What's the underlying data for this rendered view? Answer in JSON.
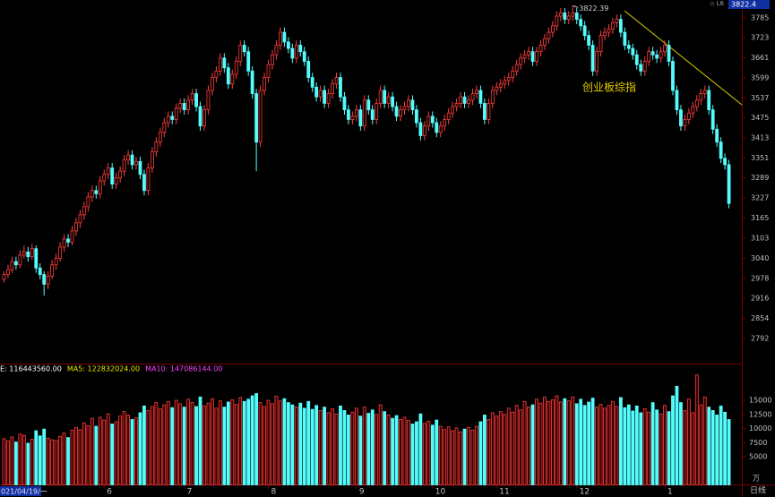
{
  "chart_data": {
    "type": "candlestick",
    "title": "创业板综指",
    "up_color": "#ff3c3c",
    "down_color": "#54fcfc",
    "ylim": [
      2717,
      3840
    ],
    "yticks": [
      3785,
      3723,
      3661,
      3599,
      3537,
      3475,
      3413,
      3351,
      3289,
      3227,
      3165,
      3103,
      3040,
      2978,
      2916,
      2854,
      2792
    ],
    "xticks": [
      {
        "value": 25,
        "label": "6"
      },
      {
        "value": 45,
        "label": "7"
      },
      {
        "value": 66,
        "label": "8"
      },
      {
        "value": 88,
        "label": "9"
      },
      {
        "value": 107,
        "label": "10"
      },
      {
        "value": 123,
        "label": "11"
      },
      {
        "value": 143,
        "label": "12"
      },
      {
        "value": 165,
        "label": "1"
      }
    ],
    "start_label": "021/04/19/一",
    "cursor_value": "3822.4",
    "top_icons": "◇ L6",
    "period": "日线",
    "candles": [
      [
        2975,
        3000,
        2965,
        2990
      ],
      [
        2990,
        3020,
        2980,
        3005
      ],
      [
        3005,
        3045,
        2995,
        3030
      ],
      [
        3030,
        3045,
        3005,
        3020
      ],
      [
        3020,
        3065,
        3010,
        3050
      ],
      [
        3050,
        3080,
        3040,
        3060
      ],
      [
        3060,
        3075,
        3030,
        3045
      ],
      [
        3045,
        3085,
        3035,
        3070
      ],
      [
        3070,
        3080,
        2995,
        3010
      ],
      [
        3010,
        3025,
        2975,
        2990
      ],
      [
        2990,
        3000,
        2925,
        2960
      ],
      [
        2960,
        3000,
        2945,
        2985
      ],
      [
        2985,
        3035,
        2975,
        3020
      ],
      [
        3020,
        3055,
        3005,
        3040
      ],
      [
        3040,
        3090,
        3030,
        3075
      ],
      [
        3075,
        3115,
        3060,
        3100
      ],
      [
        3100,
        3115,
        3075,
        3090
      ],
      [
        3090,
        3140,
        3080,
        3125
      ],
      [
        3125,
        3165,
        3110,
        3150
      ],
      [
        3150,
        3190,
        3135,
        3175
      ],
      [
        3175,
        3215,
        3160,
        3200
      ],
      [
        3200,
        3245,
        3185,
        3230
      ],
      [
        3230,
        3265,
        3215,
        3250
      ],
      [
        3250,
        3265,
        3225,
        3240
      ],
      [
        3240,
        3295,
        3225,
        3280
      ],
      [
        3280,
        3315,
        3265,
        3300
      ],
      [
        3300,
        3335,
        3285,
        3320
      ],
      [
        3320,
        3335,
        3255,
        3270
      ],
      [
        3270,
        3305,
        3255,
        3290
      ],
      [
        3290,
        3325,
        3275,
        3310
      ],
      [
        3310,
        3360,
        3295,
        3345
      ],
      [
        3345,
        3375,
        3330,
        3360
      ],
      [
        3360,
        3375,
        3315,
        3330
      ],
      [
        3330,
        3355,
        3315,
        3340
      ],
      [
        3340,
        3355,
        3285,
        3300
      ],
      [
        3300,
        3315,
        3235,
        3250
      ],
      [
        3250,
        3335,
        3235,
        3320
      ],
      [
        3320,
        3385,
        3305,
        3370
      ],
      [
        3370,
        3415,
        3355,
        3400
      ],
      [
        3400,
        3445,
        3385,
        3430
      ],
      [
        3430,
        3475,
        3415,
        3460
      ],
      [
        3460,
        3495,
        3445,
        3480
      ],
      [
        3480,
        3495,
        3455,
        3470
      ],
      [
        3470,
        3520,
        3455,
        3505
      ],
      [
        3505,
        3535,
        3490,
        3520
      ],
      [
        3520,
        3535,
        3485,
        3500
      ],
      [
        3500,
        3545,
        3485,
        3530
      ],
      [
        3530,
        3565,
        3515,
        3550
      ],
      [
        3550,
        3565,
        3495,
        3510
      ],
      [
        3510,
        3525,
        3435,
        3450
      ],
      [
        3450,
        3515,
        3435,
        3500
      ],
      [
        3500,
        3575,
        3485,
        3560
      ],
      [
        3560,
        3615,
        3545,
        3600
      ],
      [
        3600,
        3635,
        3585,
        3620
      ],
      [
        3620,
        3675,
        3605,
        3660
      ],
      [
        3660,
        3675,
        3615,
        3630
      ],
      [
        3630,
        3645,
        3565,
        3580
      ],
      [
        3580,
        3625,
        3565,
        3610
      ],
      [
        3610,
        3665,
        3595,
        3650
      ],
      [
        3650,
        3715,
        3635,
        3700
      ],
      [
        3700,
        3715,
        3665,
        3680
      ],
      [
        3680,
        3695,
        3605,
        3620
      ],
      [
        3620,
        3635,
        3535,
        3550
      ],
      [
        3550,
        3565,
        3310,
        3400
      ],
      [
        3400,
        3575,
        3385,
        3560
      ],
      [
        3560,
        3615,
        3545,
        3600
      ],
      [
        3600,
        3655,
        3585,
        3640
      ],
      [
        3640,
        3685,
        3625,
        3670
      ],
      [
        3670,
        3715,
        3655,
        3700
      ],
      [
        3700,
        3755,
        3685,
        3740
      ],
      [
        3740,
        3755,
        3695,
        3710
      ],
      [
        3710,
        3725,
        3675,
        3690
      ],
      [
        3690,
        3705,
        3645,
        3660
      ],
      [
        3660,
        3715,
        3645,
        3700
      ],
      [
        3700,
        3715,
        3665,
        3680
      ],
      [
        3680,
        3695,
        3635,
        3650
      ],
      [
        3650,
        3665,
        3585,
        3600
      ],
      [
        3600,
        3615,
        3555,
        3570
      ],
      [
        3570,
        3585,
        3525,
        3540
      ],
      [
        3540,
        3575,
        3525,
        3560
      ],
      [
        3560,
        3575,
        3505,
        3520
      ],
      [
        3520,
        3565,
        3505,
        3550
      ],
      [
        3550,
        3595,
        3535,
        3580
      ],
      [
        3580,
        3615,
        3565,
        3600
      ],
      [
        3600,
        3615,
        3525,
        3540
      ],
      [
        3540,
        3555,
        3485,
        3500
      ],
      [
        3500,
        3515,
        3455,
        3470
      ],
      [
        3470,
        3495,
        3455,
        3480
      ],
      [
        3480,
        3515,
        3465,
        3500
      ],
      [
        3500,
        3515,
        3435,
        3450
      ],
      [
        3450,
        3545,
        3435,
        3530
      ],
      [
        3530,
        3545,
        3485,
        3500
      ],
      [
        3500,
        3515,
        3455,
        3470
      ],
      [
        3470,
        3535,
        3455,
        3520
      ],
      [
        3520,
        3575,
        3505,
        3560
      ],
      [
        3560,
        3575,
        3505,
        3520
      ],
      [
        3520,
        3555,
        3505,
        3540
      ],
      [
        3540,
        3555,
        3495,
        3510
      ],
      [
        3510,
        3525,
        3465,
        3480
      ],
      [
        3480,
        3515,
        3465,
        3500
      ],
      [
        3500,
        3525,
        3485,
        3510
      ],
      [
        3510,
        3545,
        3495,
        3530
      ],
      [
        3530,
        3545,
        3485,
        3500
      ],
      [
        3500,
        3515,
        3445,
        3460
      ],
      [
        3460,
        3475,
        3405,
        3420
      ],
      [
        3420,
        3465,
        3405,
        3450
      ],
      [
        3450,
        3495,
        3435,
        3480
      ],
      [
        3480,
        3495,
        3445,
        3460
      ],
      [
        3460,
        3475,
        3415,
        3430
      ],
      [
        3430,
        3465,
        3415,
        3450
      ],
      [
        3450,
        3485,
        3435,
        3470
      ],
      [
        3470,
        3505,
        3455,
        3490
      ],
      [
        3490,
        3525,
        3475,
        3510
      ],
      [
        3510,
        3535,
        3495,
        3520
      ],
      [
        3520,
        3555,
        3505,
        3540
      ],
      [
        3540,
        3555,
        3505,
        3520
      ],
      [
        3520,
        3545,
        3505,
        3530
      ],
      [
        3530,
        3565,
        3515,
        3550
      ],
      [
        3550,
        3575,
        3535,
        3560
      ],
      [
        3560,
        3575,
        3505,
        3520
      ],
      [
        3520,
        3535,
        3455,
        3470
      ],
      [
        3470,
        3535,
        3455,
        3520
      ],
      [
        3520,
        3575,
        3505,
        3560
      ],
      [
        3560,
        3585,
        3545,
        3570
      ],
      [
        3570,
        3595,
        3555,
        3580
      ],
      [
        3580,
        3605,
        3565,
        3590
      ],
      [
        3590,
        3615,
        3575,
        3600
      ],
      [
        3600,
        3635,
        3585,
        3620
      ],
      [
        3620,
        3655,
        3605,
        3640
      ],
      [
        3640,
        3675,
        3625,
        3660
      ],
      [
        3660,
        3685,
        3645,
        3670
      ],
      [
        3670,
        3695,
        3655,
        3680
      ],
      [
        3680,
        3695,
        3635,
        3650
      ],
      [
        3650,
        3695,
        3635,
        3680
      ],
      [
        3680,
        3715,
        3665,
        3700
      ],
      [
        3700,
        3735,
        3685,
        3720
      ],
      [
        3720,
        3755,
        3705,
        3740
      ],
      [
        3740,
        3775,
        3725,
        3760
      ],
      [
        3760,
        3805,
        3745,
        3790
      ],
      [
        3790,
        3815,
        3775,
        3800
      ],
      [
        3800,
        3815,
        3765,
        3780
      ],
      [
        3780,
        3805,
        3765,
        3790
      ],
      [
        3790,
        3822.39,
        3775,
        3800
      ],
      [
        3800,
        3815,
        3765,
        3780
      ],
      [
        3780,
        3795,
        3745,
        3760
      ],
      [
        3760,
        3775,
        3715,
        3730
      ],
      [
        3730,
        3745,
        3685,
        3700
      ],
      [
        3700,
        3715,
        3605,
        3620
      ],
      [
        3620,
        3695,
        3605,
        3680
      ],
      [
        3680,
        3745,
        3665,
        3730
      ],
      [
        3730,
        3755,
        3715,
        3740
      ],
      [
        3740,
        3765,
        3725,
        3750
      ],
      [
        3750,
        3785,
        3735,
        3770
      ],
      [
        3770,
        3795,
        3755,
        3780
      ],
      [
        3780,
        3795,
        3725,
        3740
      ],
      [
        3740,
        3755,
        3685,
        3700
      ],
      [
        3700,
        3715,
        3675,
        3690
      ],
      [
        3690,
        3705,
        3655,
        3670
      ],
      [
        3670,
        3685,
        3625,
        3640
      ],
      [
        3640,
        3655,
        3605,
        3620
      ],
      [
        3620,
        3665,
        3605,
        3650
      ],
      [
        3650,
        3695,
        3635,
        3680
      ],
      [
        3680,
        3695,
        3655,
        3670
      ],
      [
        3670,
        3685,
        3645,
        3660
      ],
      [
        3660,
        3695,
        3645,
        3680
      ],
      [
        3680,
        3715,
        3665,
        3700
      ],
      [
        3700,
        3715,
        3635,
        3650
      ],
      [
        3650,
        3665,
        3545,
        3560
      ],
      [
        3560,
        3575,
        3485,
        3500
      ],
      [
        3500,
        3515,
        3435,
        3450
      ],
      [
        3450,
        3485,
        3435,
        3470
      ],
      [
        3470,
        3505,
        3455,
        3490
      ],
      [
        3490,
        3525,
        3475,
        3510
      ],
      [
        3510,
        3545,
        3495,
        3530
      ],
      [
        3530,
        3565,
        3515,
        3550
      ],
      [
        3550,
        3575,
        3535,
        3560
      ],
      [
        3560,
        3575,
        3485,
        3500
      ],
      [
        3500,
        3515,
        3425,
        3440
      ],
      [
        3440,
        3455,
        3385,
        3400
      ],
      [
        3400,
        3415,
        3335,
        3350
      ],
      [
        3350,
        3365,
        3315,
        3330
      ],
      [
        3330,
        3345,
        3195,
        3210
      ]
    ],
    "volume": {
      "unit": "万",
      "ylim": [
        0,
        21200
      ],
      "yticks": [
        15000,
        12500,
        10000,
        7500,
        5000
      ],
      "legend": [
        {
          "text": "E: 116443560.00",
          "color": "#ffffff"
        },
        {
          "text": "MA5: 122832024.00",
          "color": "#e8e800"
        },
        {
          "text": "MA10: 147086144.00",
          "color": "#ff40ff"
        }
      ],
      "values": [
        8200,
        7800,
        8500,
        7600,
        9000,
        8800,
        7400,
        8100,
        9600,
        8700,
        9900,
        8300,
        8000,
        7900,
        8600,
        9200,
        8400,
        9700,
        10200,
        9800,
        11000,
        10500,
        11800,
        10400,
        12000,
        11500,
        12600,
        10800,
        11200,
        12200,
        13000,
        12400,
        11600,
        11900,
        12800,
        14000,
        13200,
        13900,
        14600,
        13500,
        14200,
        14800,
        13700,
        15000,
        14400,
        13800,
        15200,
        14600,
        13900,
        15600,
        14000,
        14500,
        15300,
        13600,
        14900,
        13800,
        14700,
        15100,
        14300,
        15500,
        14800,
        15200,
        15800,
        16200,
        14600,
        13900,
        15000,
        14400,
        15700,
        14900,
        15300,
        14600,
        14200,
        13800,
        14500,
        13600,
        14800,
        13400,
        14100,
        13200,
        13800,
        12800,
        13500,
        12600,
        14000,
        13200,
        12400,
        12900,
        13600,
        12200,
        13800,
        12700,
        13300,
        12500,
        14200,
        13000,
        12400,
        11800,
        12300,
        11600,
        12000,
        11400,
        10800,
        11200,
        12600,
        10900,
        11300,
        10600,
        11500,
        10400,
        9800,
        10300,
        9600,
        10100,
        9400,
        9900,
        10200,
        9700,
        10400,
        11200,
        12400,
        11600,
        12800,
        12200,
        13000,
        12500,
        13600,
        12900,
        14100,
        13300,
        14800,
        13800,
        14200,
        15200,
        14500,
        15600,
        14800,
        15100,
        15800,
        14700,
        15300,
        14900,
        15600,
        14400,
        15200,
        14100,
        14700,
        15400,
        13800,
        14300,
        13600,
        14100,
        14800,
        13900,
        15500,
        13700,
        14200,
        13100,
        14000,
        12800,
        13500,
        12900,
        14600,
        13300,
        12600,
        14100,
        13000,
        15800,
        17500,
        14600,
        13200,
        15200,
        12800,
        19500,
        14200,
        15600,
        13800,
        13200,
        12400,
        14000,
        12900,
        11600
      ]
    }
  }
}
